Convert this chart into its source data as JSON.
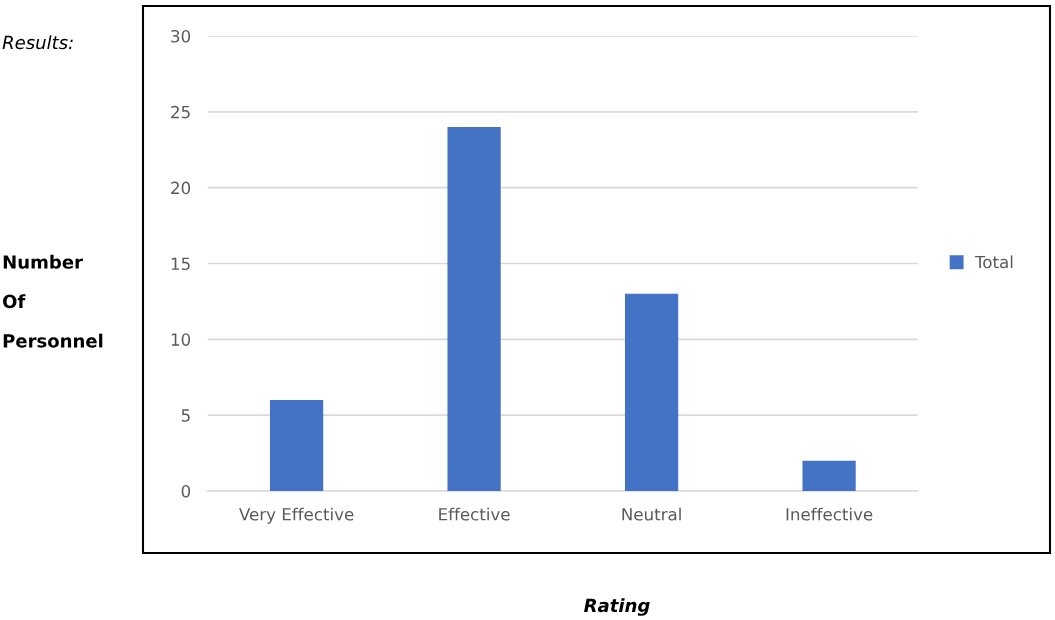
{
  "chart_data": {
    "type": "bar",
    "xlabel": "Rating",
    "ylabel": "Number\nOf\nPersonnel",
    "annotations": [
      "Results:"
    ],
    "categories": [
      "Very Effective",
      "Effective",
      "Neutral",
      "Ineffective"
    ],
    "series": [
      {
        "name": "Total",
        "color": "#4472c4",
        "values": [
          6,
          24,
          13,
          2
        ]
      }
    ],
    "ylim": [
      0,
      30
    ],
    "yticks": [
      0,
      5,
      10,
      15,
      20,
      25,
      30
    ],
    "grid": "y",
    "legend": "right"
  }
}
